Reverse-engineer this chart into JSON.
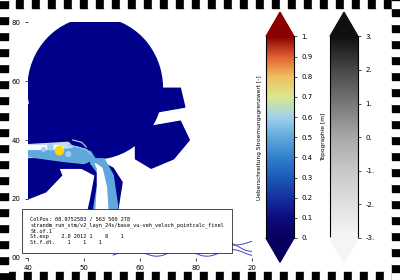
{
  "colorbar1_label": "Ueberschreitung Stroemungsgrenzwert [-]",
  "colorbar1_ticks": [
    0.0,
    0.1,
    0.2,
    0.3,
    0.4,
    0.5,
    0.6,
    0.7,
    0.8,
    0.9,
    1.0
  ],
  "colorbar1_ticklabels": [
    "0.",
    "0.1",
    "0.2",
    "0.3",
    "0.4",
    "0.5",
    "0.6",
    "0.7",
    "0.8",
    "0.9",
    "1."
  ],
  "colorbar1_colors_bottom_to_top": [
    "#08005e",
    "#0d0a80",
    "#1530a0",
    "#1e5ab8",
    "#3080cc",
    "#60a8dc",
    "#a0d0ee",
    "#d8e890",
    "#f0c060",
    "#e06030",
    "#8b0000"
  ],
  "colorbar2_label": "Topographie [m]",
  "colorbar2_ticks": [
    -3.0,
    -2.0,
    -1.0,
    0.0,
    1.0,
    2.0,
    3.0
  ],
  "colorbar2_ticklabels": [
    "-3.",
    "-2.",
    "-1.",
    "0.",
    "1.",
    "2.",
    "3."
  ],
  "colorbar2_colors_bottom_to_top": [
    "#f5f5f5",
    "#e0e0e0",
    "#c8c8c8",
    "#a8a8a8",
    "#787878",
    "#484848",
    "#101010"
  ],
  "map_water_color": "#00008B",
  "map_land_color": "#ffffff",
  "channel_color": "#c8e8f4",
  "yellow_spot_color": "#FFD700",
  "river_line_color": "#4444bb",
  "border_checker_size": 8,
  "xtick_labels": [
    "40",
    "50",
    "60",
    "80",
    "20"
  ],
  "ytick_labels": [
    "00",
    "20",
    "40",
    "60",
    "80"
  ],
  "annotation_text": "ColPos: 08.9752583 / 563 500 278\nstrandm_run_stm/v2_layn_24s/base_vu-veh_veloch_pointcalc_finel\nSt.of.1\nSt.exp    2.0 2012 1    8    1\nSt.f.dt.    1    1    1",
  "annotation_fontsize": 3.8,
  "figsize": [
    4.0,
    2.8
  ],
  "dpi": 100
}
